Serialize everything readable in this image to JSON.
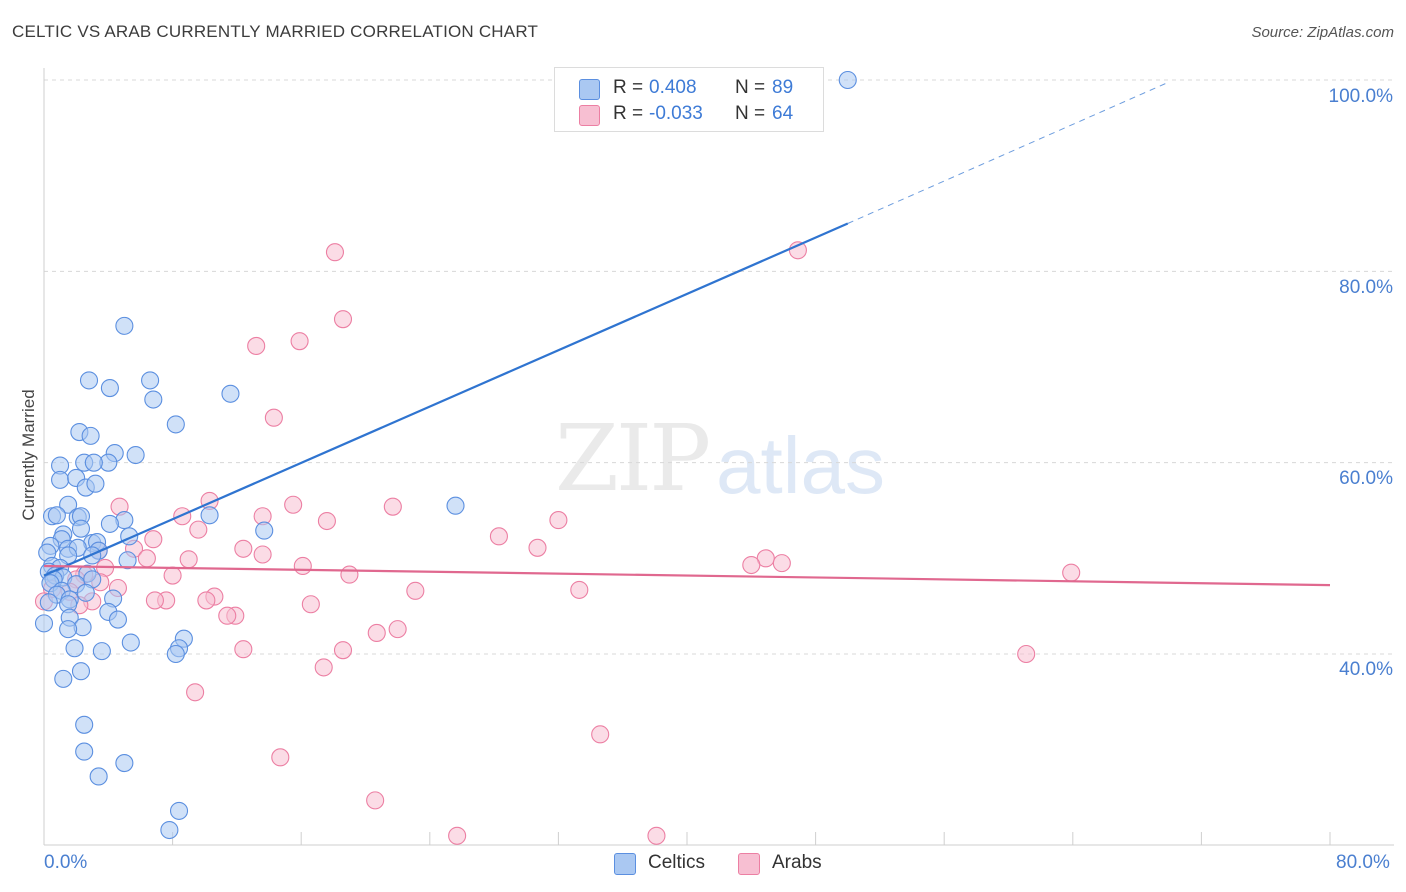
{
  "title": "CELTIC VS ARAB CURRENTLY MARRIED CORRELATION CHART",
  "source": "Source: ZipAtlas.com",
  "watermark": {
    "part1": "ZIP",
    "part2": "atlas"
  },
  "legend": {
    "celtics": {
      "r_label": "R =",
      "r_value": "0.408",
      "n_label": "N =",
      "n_value": "89"
    },
    "arabs": {
      "r_label": "R =",
      "r_value": "-0.033",
      "n_label": "N =",
      "n_value": "64"
    }
  },
  "bottom_legend": {
    "celtics": "Celtics",
    "arabs": "Arabs"
  },
  "colors": {
    "celtic": "#5b8fe0",
    "celtic_fill": "#aac8f2",
    "arab": "#ec7fa3",
    "arab_fill": "#f7bfd2",
    "celtic_line": "#2f74d0",
    "arab_line": "#e0688f",
    "tick": "#4a7fd0"
  },
  "chart_data": {
    "type": "scatter",
    "title": "CELTIC VS ARAB CURRENTLY MARRIED CORRELATION CHART",
    "xlabel": "",
    "ylabel": "Currently Married",
    "xlim": [
      0,
      80
    ],
    "ylim": [
      20,
      102
    ],
    "x_tick_labels": [
      "0.0%",
      "80.0%"
    ],
    "y_ticks": [
      40,
      60,
      80,
      100
    ],
    "y_tick_labels": [
      "40.0%",
      "60.0%",
      "80.0%",
      "100.0%"
    ],
    "legend_position": "top-center",
    "series": [
      {
        "name": "Celtics",
        "r": 0.408,
        "n": 89,
        "trend": {
          "x_start": 0,
          "y_start": 48.2,
          "x_end": 50,
          "y_end": 85.0,
          "dashed_to_x": 70,
          "dashed_to_y": 99.8
        },
        "points": [
          [
            50,
            100
          ],
          [
            5,
            74.3
          ],
          [
            2.8,
            68.6
          ],
          [
            4.1,
            67.8
          ],
          [
            6.6,
            68.6
          ],
          [
            6.8,
            66.6
          ],
          [
            11.6,
            67.2
          ],
          [
            8.2,
            64
          ],
          [
            2.2,
            63.2
          ],
          [
            2.9,
            62.8
          ],
          [
            4.4,
            61
          ],
          [
            5.7,
            60.8
          ],
          [
            1,
            59.7
          ],
          [
            4,
            60
          ],
          [
            2.5,
            60
          ],
          [
            3.1,
            60
          ],
          [
            1,
            58.2
          ],
          [
            2,
            58.4
          ],
          [
            2.6,
            57.4
          ],
          [
            3.2,
            57.8
          ],
          [
            1.5,
            55.6
          ],
          [
            25.6,
            55.5
          ],
          [
            10.3,
            54.5
          ],
          [
            0.5,
            54.4
          ],
          [
            0.8,
            54.5
          ],
          [
            2.1,
            54.3
          ],
          [
            2.3,
            54.4
          ],
          [
            5,
            54
          ],
          [
            4.1,
            53.6
          ],
          [
            2.3,
            53.1
          ],
          [
            1.2,
            52.5
          ],
          [
            13.7,
            52.9
          ],
          [
            1.1,
            52
          ],
          [
            5.3,
            52.3
          ],
          [
            3,
            51.6
          ],
          [
            3.3,
            51.7
          ],
          [
            1.5,
            51
          ],
          [
            0.4,
            51.3
          ],
          [
            2.1,
            51.1
          ],
          [
            3.4,
            50.8
          ],
          [
            0.2,
            50.6
          ],
          [
            1.5,
            50.3
          ],
          [
            3,
            50.3
          ],
          [
            5.2,
            49.8
          ],
          [
            0.5,
            49.2
          ],
          [
            1,
            49
          ],
          [
            0.3,
            48.6
          ],
          [
            2.7,
            48.4
          ],
          [
            0.7,
            48.2
          ],
          [
            1.2,
            48
          ],
          [
            0.6,
            47.8
          ],
          [
            3,
            47.8
          ],
          [
            0.4,
            47.4
          ],
          [
            2,
            47.3
          ],
          [
            1.1,
            46.6
          ],
          [
            2.6,
            46.4
          ],
          [
            0.8,
            46.2
          ],
          [
            1.6,
            45.7
          ],
          [
            4.3,
            45.8
          ],
          [
            0.3,
            45.4
          ],
          [
            1.5,
            45.2
          ],
          [
            4,
            44.4
          ],
          [
            1.6,
            43.8
          ],
          [
            4.6,
            43.6
          ],
          [
            2.4,
            42.8
          ],
          [
            1.5,
            42.6
          ],
          [
            0,
            43.2
          ],
          [
            8.7,
            41.6
          ],
          [
            5.4,
            41.2
          ],
          [
            8.4,
            40.6
          ],
          [
            8.2,
            40
          ],
          [
            3.6,
            40.3
          ],
          [
            1.9,
            40.6
          ],
          [
            2.3,
            38.2
          ],
          [
            1.2,
            37.4
          ],
          [
            2.5,
            32.6
          ],
          [
            2.5,
            29.8
          ],
          [
            5.0,
            28.6
          ],
          [
            3.4,
            27.2
          ],
          [
            8.4,
            23.6
          ],
          [
            7.8,
            21.6
          ]
        ]
      },
      {
        "name": "Arabs",
        "r": -0.033,
        "n": 64,
        "trend": {
          "x_start": 0,
          "y_start": 49.2,
          "x_end": 80,
          "y_end": 47.2
        },
        "points": [
          [
            18.1,
            82
          ],
          [
            46.9,
            82.2
          ],
          [
            18.6,
            75
          ],
          [
            15.9,
            72.7
          ],
          [
            13.2,
            72.2
          ],
          [
            14.3,
            64.7
          ],
          [
            10.3,
            56
          ],
          [
            15.5,
            55.6
          ],
          [
            4.7,
            55.4
          ],
          [
            21.7,
            55.4
          ],
          [
            8.6,
            54.4
          ],
          [
            13.6,
            54.4
          ],
          [
            17.6,
            53.9
          ],
          [
            32.0,
            54
          ],
          [
            9.6,
            53
          ],
          [
            28.3,
            52.3
          ],
          [
            6.8,
            52
          ],
          [
            30.7,
            51.1
          ],
          [
            12.4,
            51
          ],
          [
            5.6,
            51
          ],
          [
            3.4,
            50.8
          ],
          [
            13.6,
            50.4
          ],
          [
            44.9,
            50
          ],
          [
            6.4,
            50
          ],
          [
            45.9,
            49.5
          ],
          [
            44.0,
            49.3
          ],
          [
            9.0,
            49.9
          ],
          [
            16.1,
            49.2
          ],
          [
            2.5,
            48.3
          ],
          [
            3.8,
            49
          ],
          [
            19,
            48.3
          ],
          [
            8,
            48.2
          ],
          [
            63.9,
            48.5
          ],
          [
            2,
            47.8
          ],
          [
            3.5,
            47.5
          ],
          [
            0.5,
            46.8
          ],
          [
            4.6,
            46.9
          ],
          [
            33.3,
            46.7
          ],
          [
            23.1,
            46.6
          ],
          [
            1.6,
            46.5
          ],
          [
            10.6,
            46
          ],
          [
            7.6,
            45.6
          ],
          [
            6.9,
            45.6
          ],
          [
            10.1,
            45.6
          ],
          [
            16.6,
            45.2
          ],
          [
            3.0,
            45.5
          ],
          [
            2.2,
            45.1
          ],
          [
            0,
            45.5
          ],
          [
            11.9,
            44
          ],
          [
            11.4,
            44
          ],
          [
            22.0,
            42.6
          ],
          [
            20.7,
            42.2
          ],
          [
            12.4,
            40.5
          ],
          [
            18.6,
            40.4
          ],
          [
            61.1,
            40
          ],
          [
            17.4,
            38.6
          ],
          [
            9.4,
            36
          ],
          [
            34.6,
            31.6
          ],
          [
            14.7,
            29.2
          ],
          [
            20.6,
            24.7
          ],
          [
            25.7,
            21
          ],
          [
            38.1,
            21
          ]
        ]
      }
    ]
  }
}
